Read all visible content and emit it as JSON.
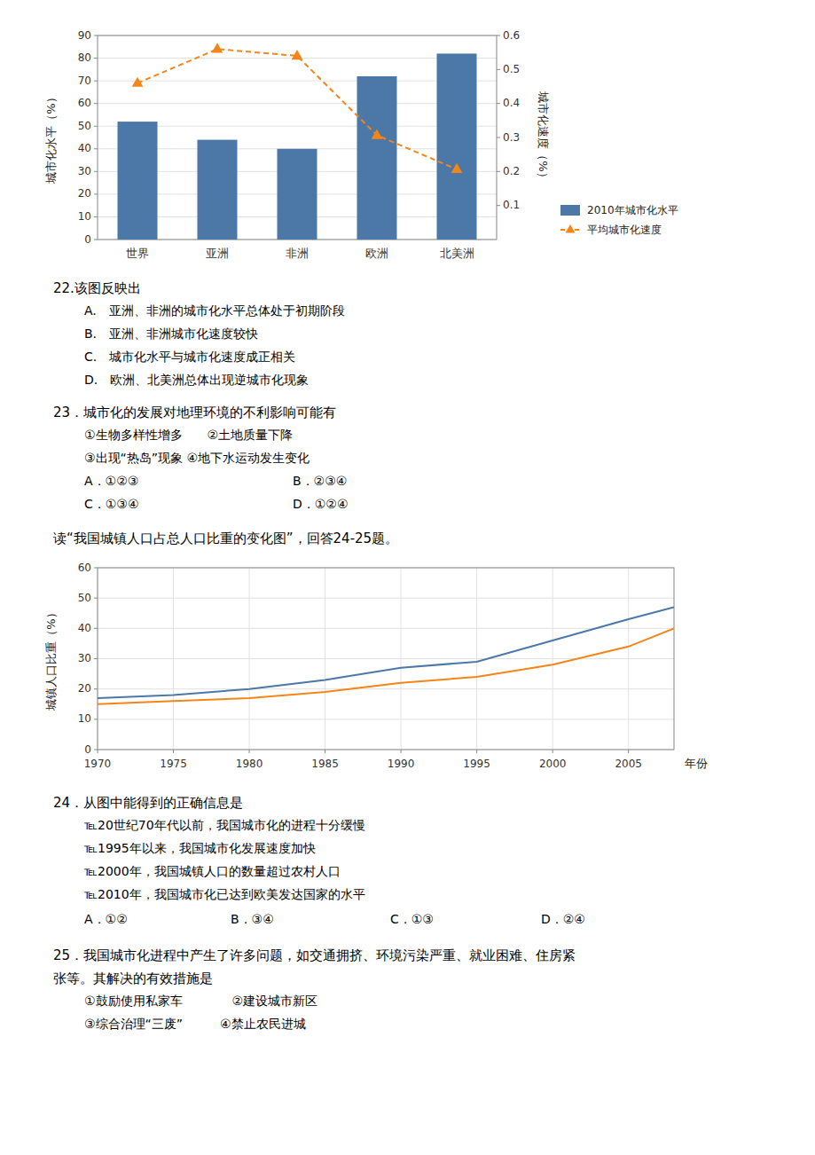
{
  "chart_data": [
    {
      "type": "bar",
      "categories": [
        "世界",
        "亚洲",
        "非洲",
        "欧洲",
        "北美洲"
      ],
      "series": [
        {
          "name": "2010年城市化水平",
          "type": "bar",
          "values": [
            52,
            44,
            40,
            72,
            82
          ]
        },
        {
          "name": "平均城市化速度",
          "type": "line",
          "axis": "y2",
          "marker": "triangle",
          "line_style": "dashed",
          "values": [
            0.46,
            0.56,
            0.54,
            0.3066666666666667,
            0.20666666666666667
          ]
        }
      ],
      "ylabel": "城市化水平（%）",
      "y2label": "城市化速度（%）",
      "ylim": [
        0,
        90
      ],
      "yticks": [
        0,
        10,
        20,
        30,
        40,
        50,
        60,
        70,
        80,
        90
      ],
      "y2lim": [
        0,
        0.6
      ],
      "y2ticks": [
        0.1,
        0.2,
        0.3,
        0.4,
        0.5,
        0.6
      ],
      "grid": true,
      "legend": "lower right",
      "annotations": [
        "22.该图反映出",
        "A.　亚洲、非洲的城市化水平总体处于初期阶段",
        "B.　亚洲、非洲城市化速度较快",
        "C.　城市化水平与城市化速度成正相关",
        "D.　欧洲、北美洲总体出现逆城市化现象",
        "23．城市化的发展对地理环境的不利影响可能有",
        "①生物多样性增多　　②土地质量下降",
        "③出现“热岛”现象 ④地下水运动发生变化",
        "A．①②③",
        "B．②③④",
        "C．①③④",
        "D．①②④"
      ]
    },
    {
      "type": "line",
      "x": [
        1970,
        1975,
        1980,
        1985,
        1990,
        1995,
        2000,
        2005,
        2008
      ],
      "series": [
        {
          "values": [
            17,
            18,
            20,
            23,
            27,
            29,
            36,
            43,
            47
          ]
        },
        {
          "values": [
            15,
            16,
            17,
            19,
            22,
            24,
            28,
            34,
            40
          ]
        }
      ],
      "xlabel": "年份",
      "ylabel": "城镇人口比重（%）",
      "xlim": [
        1970,
        2008
      ],
      "ylim": [
        0,
        60
      ],
      "xticks": [
        1970,
        1975,
        1980,
        1985,
        1990,
        1995,
        2000,
        2005
      ],
      "yticks": [
        0,
        10,
        20,
        30,
        40,
        50,
        60
      ],
      "grid": true,
      "annotations": [
        "读“我国城镇人口占总人口比重的变化图”，回答24-25题。",
        "24．从图中能得到的正确信息是",
        "℡20世纪70年代以前，我国城市化的进程十分缓慢",
        "℡1995年以来，我国城市化发展速度加快",
        "℡2000年，我国城镇人口的数量超过农村人口",
        "℡2010年，我国城市化已达到欧美发达国家的水平",
        "A．①②",
        "B．③④",
        "C．①③",
        "D．②④",
        "25．我国城市化进程中产生了许多问题，如交通拥挤、环境污染严重、就业困难、住房紧",
        "张等。其解决的有效措施是",
        "①鼓励使用私家车　　　　②建设城市新区",
        "③综合治理“三废”　　　④禁止农民进城"
      ]
    }
  ]
}
